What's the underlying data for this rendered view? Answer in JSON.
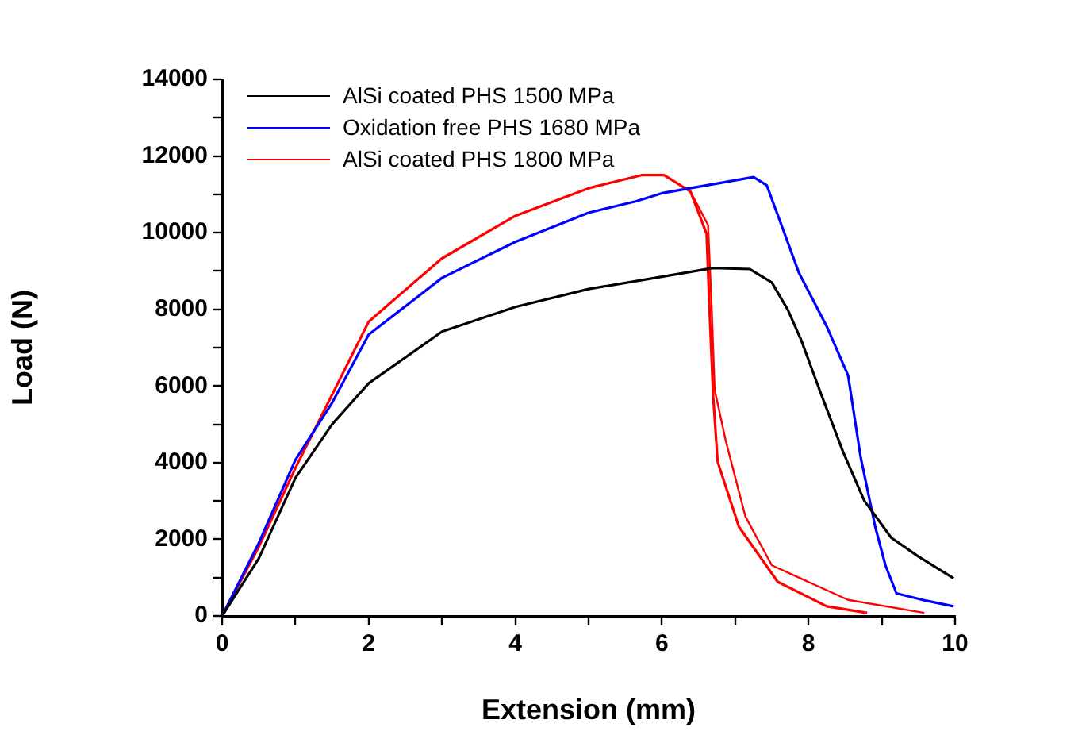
{
  "chart_data": {
    "type": "line",
    "xlabel": "Extension (mm)",
    "ylabel": "Load (N)",
    "xlim": [
      0,
      10
    ],
    "ylim": [
      0,
      14000
    ],
    "xticks": [
      0,
      {
        "value": 1,
        "label": null
      },
      2,
      {
        "value": 3,
        "label": null
      },
      4,
      {
        "value": 5,
        "label": null
      },
      6,
      {
        "value": 7,
        "label": null
      },
      8,
      {
        "value": 9,
        "label": null
      },
      10
    ],
    "yticks": [
      0,
      {
        "value": 1000,
        "label": null
      },
      2000,
      {
        "value": 3000,
        "label": null
      },
      4000,
      {
        "value": 5000,
        "label": null
      },
      6000,
      {
        "value": 7000,
        "label": null
      },
      8000,
      {
        "value": 9000,
        "label": null
      },
      10000,
      {
        "value": 11000,
        "label": null
      },
      12000,
      {
        "value": 13000,
        "label": null
      },
      14000
    ],
    "grid": false,
    "legend": "top left",
    "marker": "none",
    "line_style": "solid",
    "series": [
      {
        "name": "AlSi coated PHS 1500 MPa",
        "color": "#000000",
        "x": [
          0,
          0.5,
          1,
          1.5,
          2,
          3,
          4,
          5,
          6,
          6.7,
          7.2,
          7.5,
          7.72,
          7.9,
          8.16,
          8.47,
          8.76,
          9.13,
          9.5,
          9.98
        ],
        "values": [
          0,
          1500,
          3600,
          5000,
          6070,
          7420,
          8060,
          8530,
          8850,
          9080,
          9050,
          8700,
          7980,
          7200,
          5850,
          4290,
          3010,
          2040,
          1550,
          980
        ]
      },
      {
        "name": "Oxidation free PHS 1680 MPa",
        "color": "#0000ff",
        "x": [
          0,
          0.5,
          1,
          1.5,
          2,
          3,
          4,
          5,
          5.65,
          6,
          7.25,
          7.43,
          7.65,
          7.87,
          8.25,
          8.54,
          8.71,
          8.91,
          9.05,
          9.2,
          9.6,
          9.98
        ],
        "values": [
          0,
          1900,
          4070,
          5560,
          7340,
          8820,
          9760,
          10520,
          10820,
          11030,
          11450,
          11240,
          10100,
          8950,
          7550,
          6280,
          4160,
          2330,
          1320,
          590,
          400,
          250
        ]
      },
      {
        "name": "AlSi coated PHS 1800 MPa",
        "color": "#ff0000",
        "x": [
          0,
          0.5,
          1,
          1.5,
          2,
          3,
          4,
          5,
          5.72,
          6.03,
          6.39,
          6.61,
          6.65,
          6.7,
          6.76,
          7.05,
          7.58,
          8.25,
          8.8
        ],
        "values": [
          0,
          1800,
          3860,
          5770,
          7680,
          9330,
          10440,
          11160,
          11500,
          11500,
          11070,
          9970,
          7980,
          5730,
          4030,
          2330,
          890,
          250,
          80
        ]
      },
      {
        "color": "#ff0000",
        "x": [
          6.39,
          6.63,
          6.68,
          6.72,
          6.87,
          7.14,
          7.5,
          8.54,
          9.58
        ],
        "values": [
          11070,
          10200,
          8000,
          5900,
          4580,
          2590,
          1320,
          420,
          80
        ]
      }
    ]
  }
}
